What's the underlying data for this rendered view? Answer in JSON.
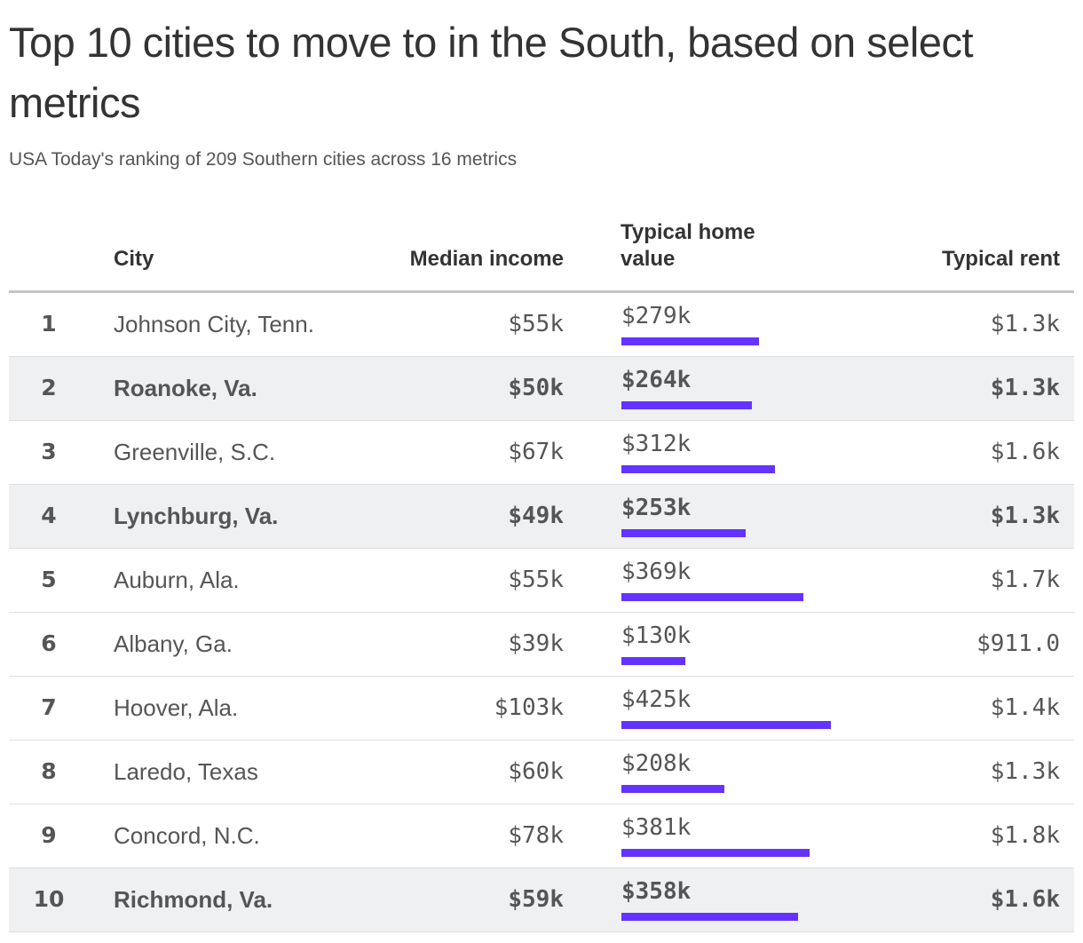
{
  "title": "Top 10 cities to move to in the South, based on select metrics",
  "subtitle": "USA Today's ranking of 209 Southern cities across 16 metrics",
  "colors": {
    "bar": "#6533ff",
    "highlight_row": "#eff0f2"
  },
  "chart_data": {
    "type": "table",
    "columns": [
      "",
      "City",
      "Median income",
      "Typical home value",
      "Typical rent"
    ],
    "bar_column": "Typical home value",
    "bar_max": 425,
    "rows": [
      {
        "rank": "1",
        "city": "Johnson City, Tenn.",
        "income": "$55k",
        "home": "$279k",
        "home_value": 279,
        "rent": "$1.3k",
        "highlight": false
      },
      {
        "rank": "2",
        "city": "Roanoke, Va.",
        "income": "$50k",
        "home": "$264k",
        "home_value": 264,
        "rent": "$1.3k",
        "highlight": true
      },
      {
        "rank": "3",
        "city": "Greenville, S.C.",
        "income": "$67k",
        "home": "$312k",
        "home_value": 312,
        "rent": "$1.6k",
        "highlight": false
      },
      {
        "rank": "4",
        "city": "Lynchburg, Va.",
        "income": "$49k",
        "home": "$253k",
        "home_value": 253,
        "rent": "$1.3k",
        "highlight": true
      },
      {
        "rank": "5",
        "city": "Auburn, Ala.",
        "income": "$55k",
        "home": "$369k",
        "home_value": 369,
        "rent": "$1.7k",
        "highlight": false
      },
      {
        "rank": "6",
        "city": "Albany, Ga.",
        "income": "$39k",
        "home": "$130k",
        "home_value": 130,
        "rent": "$911.0",
        "highlight": false
      },
      {
        "rank": "7",
        "city": "Hoover, Ala.",
        "income": "$103k",
        "home": "$425k",
        "home_value": 425,
        "rent": "$1.4k",
        "highlight": false
      },
      {
        "rank": "8",
        "city": "Laredo, Texas",
        "income": "$60k",
        "home": "$208k",
        "home_value": 208,
        "rent": "$1.3k",
        "highlight": false
      },
      {
        "rank": "9",
        "city": "Concord, N.C.",
        "income": "$78k",
        "home": "$381k",
        "home_value": 381,
        "rent": "$1.8k",
        "highlight": false
      },
      {
        "rank": "10",
        "city": "Richmond, Va.",
        "income": "$59k",
        "home": "$358k",
        "home_value": 358,
        "rent": "$1.6k",
        "highlight": true
      }
    ]
  }
}
